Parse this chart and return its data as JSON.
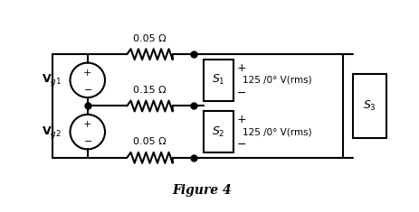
{
  "fig_width": 4.64,
  "fig_height": 2.35,
  "dpi": 100,
  "bg_color": "#ffffff",
  "line_color": "#000000",
  "title": "Figure 4",
  "title_fontsize": 10,
  "vg1_label": "$\\mathbf{V}_{g1}$",
  "vg2_label": "$\\mathbf{V}_{g2}$",
  "s1_label": "$S_1$",
  "s2_label": "$S_2$",
  "s3_label": "$S_3$",
  "r1_label": "0.05 Ω",
  "r2_label": "0.15 Ω",
  "r3_label": "0.05 Ω",
  "v1_label": "125 /0° V(rms)",
  "v2_label": "125 /0° V(rms)"
}
